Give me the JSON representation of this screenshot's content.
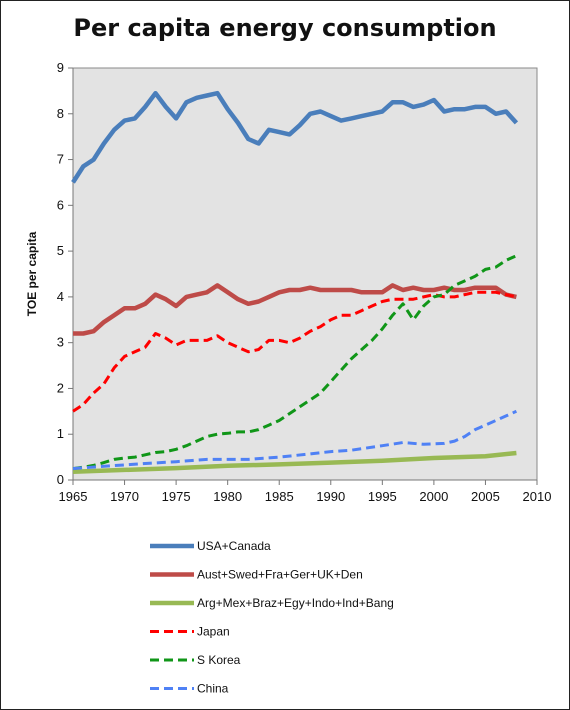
{
  "chart_data": {
    "type": "line",
    "title": "Per capita energy consumption",
    "xlabel": "",
    "ylabel": "TOE per capita",
    "xlim": [
      1965,
      2010
    ],
    "ylim": [
      0,
      9
    ],
    "xticks": [
      1965,
      1970,
      1975,
      1980,
      1985,
      1990,
      1995,
      2000,
      2005,
      2010
    ],
    "yticks": [
      0,
      1,
      2,
      3,
      4,
      5,
      6,
      7,
      8,
      9
    ],
    "grid": false,
    "plot_background": "#e3e3e3",
    "legend_position": "bottom",
    "series": [
      {
        "name": "USA+Canada",
        "color": "#4a7ebb",
        "style": "solid",
        "x": [
          1965,
          1966,
          1967,
          1968,
          1969,
          1970,
          1971,
          1972,
          1973,
          1974,
          1975,
          1976,
          1977,
          1978,
          1979,
          1980,
          1981,
          1982,
          1983,
          1984,
          1985,
          1986,
          1987,
          1988,
          1989,
          1990,
          1991,
          1992,
          1993,
          1994,
          1995,
          1996,
          1997,
          1998,
          1999,
          2000,
          2001,
          2002,
          2003,
          2004,
          2005,
          2006,
          2007,
          2008
        ],
        "y": [
          6.5,
          6.85,
          7.0,
          7.35,
          7.65,
          7.85,
          7.9,
          8.15,
          8.45,
          8.15,
          7.9,
          8.25,
          8.35,
          8.4,
          8.45,
          8.1,
          7.8,
          7.45,
          7.35,
          7.65,
          7.6,
          7.55,
          7.75,
          8.0,
          8.05,
          7.95,
          7.85,
          7.9,
          7.95,
          8.0,
          8.05,
          8.25,
          8.25,
          8.15,
          8.2,
          8.3,
          8.05,
          8.1,
          8.1,
          8.15,
          8.15,
          8.0,
          8.05,
          7.8
        ]
      },
      {
        "name": "Aust+Swed+Fra+Ger+UK+Den",
        "color": "#be4b48",
        "style": "solid",
        "x": [
          1965,
          1966,
          1967,
          1968,
          1969,
          1970,
          1971,
          1972,
          1973,
          1974,
          1975,
          1976,
          1977,
          1978,
          1979,
          1980,
          1981,
          1982,
          1983,
          1984,
          1985,
          1986,
          1987,
          1988,
          1989,
          1990,
          1991,
          1992,
          1993,
          1994,
          1995,
          1996,
          1997,
          1998,
          1999,
          2000,
          2001,
          2002,
          2003,
          2004,
          2005,
          2006,
          2007,
          2008
        ],
        "y": [
          3.2,
          3.2,
          3.25,
          3.45,
          3.6,
          3.75,
          3.75,
          3.85,
          4.05,
          3.95,
          3.8,
          4.0,
          4.05,
          4.1,
          4.25,
          4.1,
          3.95,
          3.85,
          3.9,
          4.0,
          4.1,
          4.15,
          4.15,
          4.2,
          4.15,
          4.15,
          4.15,
          4.15,
          4.1,
          4.1,
          4.1,
          4.25,
          4.15,
          4.2,
          4.15,
          4.15,
          4.2,
          4.15,
          4.15,
          4.2,
          4.2,
          4.2,
          4.05,
          4.0
        ]
      },
      {
        "name": "Arg+Mex+Braz+Egy+Indo+Ind+Bang",
        "color": "#98b954",
        "style": "solid",
        "x": [
          1965,
          1970,
          1975,
          1980,
          1985,
          1990,
          1995,
          2000,
          2005,
          2008
        ],
        "y": [
          0.18,
          0.22,
          0.26,
          0.31,
          0.34,
          0.38,
          0.42,
          0.48,
          0.52,
          0.59
        ]
      },
      {
        "name": "Japan",
        "color": "#ff0000",
        "style": "dashed",
        "x": [
          1965,
          1966,
          1967,
          1968,
          1969,
          1970,
          1971,
          1972,
          1973,
          1974,
          1975,
          1976,
          1977,
          1978,
          1979,
          1980,
          1981,
          1982,
          1983,
          1984,
          1985,
          1986,
          1987,
          1988,
          1989,
          1990,
          1991,
          1992,
          1993,
          1994,
          1995,
          1996,
          1997,
          1998,
          1999,
          2000,
          2001,
          2002,
          2003,
          2004,
          2005,
          2006,
          2007,
          2008
        ],
        "y": [
          1.5,
          1.65,
          1.9,
          2.1,
          2.45,
          2.7,
          2.8,
          2.9,
          3.2,
          3.1,
          2.95,
          3.05,
          3.05,
          3.05,
          3.15,
          3.0,
          2.9,
          2.8,
          2.85,
          3.05,
          3.05,
          3.0,
          3.1,
          3.25,
          3.35,
          3.5,
          3.6,
          3.6,
          3.7,
          3.8,
          3.9,
          3.95,
          3.95,
          3.95,
          4.0,
          4.05,
          4.0,
          4.0,
          4.05,
          4.1,
          4.1,
          4.1,
          4.05,
          4.0
        ]
      },
      {
        "name": "S Korea",
        "color": "#109618",
        "style": "dashed",
        "x": [
          1965,
          1966,
          1967,
          1968,
          1969,
          1970,
          1971,
          1972,
          1973,
          1974,
          1975,
          1976,
          1977,
          1978,
          1979,
          1980,
          1981,
          1982,
          1983,
          1984,
          1985,
          1986,
          1987,
          1988,
          1989,
          1990,
          1991,
          1992,
          1993,
          1994,
          1995,
          1996,
          1997,
          1998,
          1999,
          2000,
          2001,
          2002,
          2003,
          2004,
          2005,
          2006,
          2007,
          2008
        ],
        "y": [
          0.25,
          0.28,
          0.32,
          0.38,
          0.45,
          0.48,
          0.5,
          0.55,
          0.6,
          0.62,
          0.67,
          0.75,
          0.85,
          0.95,
          1.0,
          1.02,
          1.05,
          1.05,
          1.1,
          1.2,
          1.3,
          1.45,
          1.6,
          1.75,
          1.9,
          2.15,
          2.4,
          2.65,
          2.85,
          3.05,
          3.3,
          3.6,
          3.85,
          3.5,
          3.8,
          4.0,
          4.05,
          4.25,
          4.35,
          4.45,
          4.6,
          4.65,
          4.8,
          4.9
        ]
      },
      {
        "name": "China",
        "color": "#4f81f5",
        "style": "dashed",
        "x": [
          1965,
          1968,
          1970,
          1972,
          1975,
          1978,
          1980,
          1982,
          1985,
          1988,
          1990,
          1992,
          1995,
          1997,
          1999,
          2001,
          2002,
          2003,
          2004,
          2005,
          2006,
          2007,
          2008
        ],
        "y": [
          0.25,
          0.3,
          0.33,
          0.36,
          0.4,
          0.45,
          0.45,
          0.45,
          0.5,
          0.57,
          0.62,
          0.65,
          0.75,
          0.82,
          0.78,
          0.8,
          0.85,
          0.95,
          1.1,
          1.2,
          1.3,
          1.4,
          1.5
        ]
      }
    ]
  }
}
